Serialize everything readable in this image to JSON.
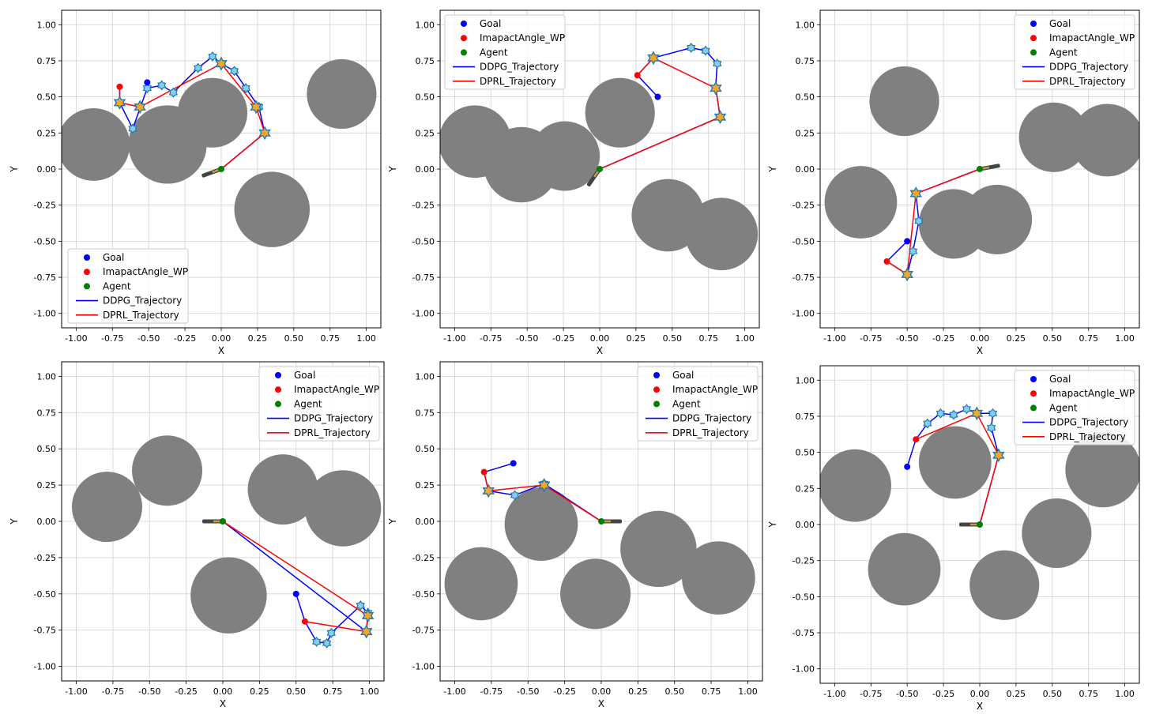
{
  "figure": {
    "rows": 2,
    "cols": 3
  },
  "colors": {
    "goal": "#0000ff",
    "waypoint": "#ff0000",
    "agent": "#008000",
    "ddpg": "#0000ff",
    "dprl": "#ff0000",
    "obstacle": "#808080",
    "grid": "#d0d0d0",
    "marker_star_fill": "#f5a623",
    "marker_star_edge": "#1f77b4",
    "marker_hex_fill": "#87ceeb"
  },
  "chart_data": [
    {
      "type": "scatter",
      "title": "",
      "xlabel": "X",
      "ylabel": "Y",
      "xlim": [
        -1.1,
        1.1
      ],
      "ylim": [
        -1.1,
        1.1
      ],
      "xticks": [
        "-1.00",
        "-0.75",
        "-0.50",
        "-0.25",
        "0.00",
        "0.25",
        "0.50",
        "0.75",
        "1.00"
      ],
      "yticks": [
        "-1.00",
        "-0.75",
        "-0.50",
        "-0.25",
        "0.00",
        "0.25",
        "0.50",
        "0.75",
        "1.00"
      ],
      "grid": true,
      "legend_loc": "lower-left",
      "legend": [
        "Goal",
        "ImapactAngle_WP",
        "Agent",
        "DDPG_Trajectory",
        "DPRL_Trajectory"
      ],
      "obstacles": [
        {
          "x": -0.88,
          "y": 0.17,
          "r": 0.25
        },
        {
          "x": -0.37,
          "y": 0.17,
          "r": 0.27
        },
        {
          "x": -0.06,
          "y": 0.39,
          "r": 0.24
        },
        {
          "x": 0.35,
          "y": -0.28,
          "r": 0.26
        },
        {
          "x": 0.83,
          "y": 0.52,
          "r": 0.24
        }
      ],
      "goal": {
        "x": -0.51,
        "y": 0.6
      },
      "waypoint": {
        "x": -0.7,
        "y": 0.57
      },
      "agent": {
        "x": 0.0,
        "y": 0.0,
        "heading_deg": 200
      },
      "ddpg": [
        [
          0.0,
          0.0
        ],
        [
          0.3,
          0.25
        ],
        [
          0.26,
          0.43
        ],
        [
          0.17,
          0.56
        ],
        [
          0.09,
          0.68
        ],
        [
          0.0,
          0.73
        ],
        [
          -0.06,
          0.78
        ],
        [
          -0.16,
          0.7
        ],
        [
          -0.33,
          0.53
        ],
        [
          -0.41,
          0.58
        ],
        [
          -0.51,
          0.56
        ],
        [
          -0.61,
          0.28
        ],
        [
          -0.7,
          0.46
        ],
        [
          -0.7,
          0.57
        ]
      ],
      "dprl": [
        [
          0.0,
          0.0
        ],
        [
          0.3,
          0.25
        ],
        [
          0.24,
          0.43
        ],
        [
          0.0,
          0.73
        ],
        [
          -0.56,
          0.43
        ],
        [
          -0.7,
          0.46
        ],
        [
          -0.7,
          0.57
        ]
      ],
      "hex_markers": [
        [
          0.3,
          0.25
        ],
        [
          0.26,
          0.43
        ],
        [
          0.17,
          0.56
        ],
        [
          0.09,
          0.68
        ],
        [
          -0.06,
          0.78
        ],
        [
          -0.16,
          0.7
        ],
        [
          -0.33,
          0.53
        ],
        [
          -0.41,
          0.58
        ],
        [
          -0.51,
          0.56
        ],
        [
          -0.61,
          0.28
        ]
      ],
      "star_markers": [
        [
          0.3,
          0.25
        ],
        [
          0.24,
          0.43
        ],
        [
          0.0,
          0.73
        ],
        [
          -0.56,
          0.43
        ],
        [
          -0.7,
          0.46
        ]
      ]
    },
    {
      "type": "scatter",
      "title": "",
      "xlabel": "X",
      "ylabel": "Y",
      "xlim": [
        -1.1,
        1.1
      ],
      "ylim": [
        -1.1,
        1.1
      ],
      "xticks": [
        "-1.00",
        "-0.75",
        "-0.50",
        "-0.25",
        "0.00",
        "0.25",
        "0.50",
        "0.75",
        "1.00"
      ],
      "yticks": [
        "-1.00",
        "-0.75",
        "-0.50",
        "-0.25",
        "0.00",
        "0.25",
        "0.50",
        "0.75",
        "1.00"
      ],
      "grid": true,
      "legend_loc": "top-left",
      "legend": [
        "Goal",
        "ImapactAngle_WP",
        "Agent",
        "DDPG_Trajectory",
        "DPRL_Trajectory"
      ],
      "obstacles": [
        {
          "x": -0.86,
          "y": 0.19,
          "r": 0.25
        },
        {
          "x": -0.54,
          "y": 0.03,
          "r": 0.26
        },
        {
          "x": -0.24,
          "y": 0.09,
          "r": 0.24
        },
        {
          "x": 0.14,
          "y": 0.39,
          "r": 0.24
        },
        {
          "x": 0.47,
          "y": -0.32,
          "r": 0.25
        },
        {
          "x": 0.84,
          "y": -0.45,
          "r": 0.25
        }
      ],
      "goal": {
        "x": 0.4,
        "y": 0.5
      },
      "waypoint": {
        "x": 0.26,
        "y": 0.65
      },
      "agent": {
        "x": 0.0,
        "y": 0.0,
        "heading_deg": 235
      },
      "ddpg": [
        [
          0.0,
          0.0
        ],
        [
          0.83,
          0.36
        ],
        [
          0.8,
          0.56
        ],
        [
          0.8,
          0.58
        ],
        [
          0.81,
          0.73
        ],
        [
          0.73,
          0.82
        ],
        [
          0.63,
          0.84
        ],
        [
          0.37,
          0.77
        ],
        [
          0.26,
          0.65
        ],
        [
          0.4,
          0.5
        ]
      ],
      "dprl": [
        [
          0.0,
          0.0
        ],
        [
          0.83,
          0.36
        ],
        [
          0.8,
          0.56
        ],
        [
          0.37,
          0.77
        ],
        [
          0.26,
          0.65
        ]
      ],
      "hex_markers": [
        [
          0.8,
          0.56
        ],
        [
          0.81,
          0.73
        ],
        [
          0.73,
          0.82
        ],
        [
          0.63,
          0.84
        ],
        [
          0.37,
          0.77
        ]
      ],
      "star_markers": [
        [
          0.83,
          0.36
        ],
        [
          0.8,
          0.56
        ],
        [
          0.37,
          0.77
        ]
      ]
    },
    {
      "type": "scatter",
      "title": "",
      "xlabel": "X",
      "ylabel": "Y",
      "xlim": [
        -1.1,
        1.1
      ],
      "ylim": [
        -1.1,
        1.1
      ],
      "xticks": [
        "-1.00",
        "-0.75",
        "-0.50",
        "-0.25",
        "0.00",
        "0.25",
        "0.50",
        "0.75",
        "1.00"
      ],
      "yticks": [
        "-1.00",
        "-0.75",
        "-0.50",
        "-0.25",
        "0.00",
        "0.25",
        "0.50",
        "0.75",
        "1.00"
      ],
      "grid": true,
      "legend_loc": "top-right",
      "legend": [
        "Goal",
        "ImapactAngle_WP",
        "Agent",
        "DDPG_Trajectory",
        "DPRL_Trajectory"
      ],
      "obstacles": [
        {
          "x": -0.52,
          "y": 0.47,
          "r": 0.24
        },
        {
          "x": -0.82,
          "y": -0.23,
          "r": 0.25
        },
        {
          "x": -0.18,
          "y": -0.38,
          "r": 0.24
        },
        {
          "x": 0.12,
          "y": -0.35,
          "r": 0.24
        },
        {
          "x": 0.51,
          "y": 0.22,
          "r": 0.24
        },
        {
          "x": 0.88,
          "y": 0.2,
          "r": 0.25
        }
      ],
      "goal": {
        "x": -0.5,
        "y": -0.5
      },
      "waypoint": {
        "x": -0.64,
        "y": -0.64
      },
      "agent": {
        "x": 0.0,
        "y": 0.0,
        "heading_deg": 10
      },
      "ddpg": [
        [
          0.0,
          0.0
        ],
        [
          -0.44,
          -0.17
        ],
        [
          -0.42,
          -0.36
        ],
        [
          -0.46,
          -0.57
        ],
        [
          -0.5,
          -0.73
        ],
        [
          -0.64,
          -0.64
        ],
        [
          -0.5,
          -0.5
        ]
      ],
      "dprl": [
        [
          0.0,
          0.0
        ],
        [
          -0.44,
          -0.17
        ],
        [
          -0.5,
          -0.73
        ],
        [
          -0.64,
          -0.64
        ]
      ],
      "hex_markers": [
        [
          -0.44,
          -0.17
        ],
        [
          -0.42,
          -0.36
        ],
        [
          -0.46,
          -0.57
        ],
        [
          -0.5,
          -0.73
        ]
      ],
      "star_markers": [
        [
          -0.44,
          -0.17
        ],
        [
          -0.5,
          -0.73
        ]
      ]
    },
    {
      "type": "scatter",
      "title": "",
      "xlabel": "X",
      "ylabel": "Y",
      "xlim": [
        -1.1,
        1.1
      ],
      "ylim": [
        -1.1,
        1.1
      ],
      "xticks": [
        "-1.00",
        "-0.75",
        "-0.50",
        "-0.25",
        "0.00",
        "0.25",
        "0.50",
        "0.75",
        "1.00"
      ],
      "yticks": [
        "-1.00",
        "-0.75",
        "-0.50",
        "-0.25",
        "0.00",
        "0.25",
        "0.50",
        "0.75",
        "1.00"
      ],
      "grid": true,
      "legend_loc": "top-right",
      "legend": [
        "Goal",
        "ImapactAngle_WP",
        "Agent",
        "DDPG_Trajectory",
        "DPRL_Trajectory"
      ],
      "obstacles": [
        {
          "x": -0.79,
          "y": 0.1,
          "r": 0.24
        },
        {
          "x": -0.38,
          "y": 0.35,
          "r": 0.24
        },
        {
          "x": 0.41,
          "y": 0.22,
          "r": 0.24
        },
        {
          "x": 0.82,
          "y": 0.09,
          "r": 0.26
        },
        {
          "x": 0.04,
          "y": -0.51,
          "r": 0.26
        }
      ],
      "goal": {
        "x": 0.5,
        "y": -0.5
      },
      "waypoint": {
        "x": 0.56,
        "y": -0.69
      },
      "agent": {
        "x": 0.0,
        "y": 0.0,
        "heading_deg": 180
      },
      "ddpg": [
        [
          0.0,
          0.0
        ],
        [
          0.98,
          -0.76
        ],
        [
          0.99,
          -0.63
        ],
        [
          0.94,
          -0.58
        ],
        [
          0.74,
          -0.77
        ],
        [
          0.71,
          -0.84
        ],
        [
          0.64,
          -0.83
        ],
        [
          0.56,
          -0.69
        ],
        [
          0.5,
          -0.5
        ]
      ],
      "dprl": [
        [
          0.0,
          0.0
        ],
        [
          0.99,
          -0.65
        ],
        [
          0.98,
          -0.76
        ],
        [
          0.56,
          -0.69
        ]
      ],
      "hex_markers": [
        [
          0.98,
          -0.76
        ],
        [
          0.99,
          -0.63
        ],
        [
          0.94,
          -0.58
        ],
        [
          0.74,
          -0.77
        ],
        [
          0.71,
          -0.84
        ],
        [
          0.64,
          -0.83
        ]
      ],
      "star_markers": [
        [
          0.99,
          -0.65
        ],
        [
          0.98,
          -0.76
        ]
      ]
    },
    {
      "type": "scatter",
      "title": "",
      "xlabel": "X",
      "ylabel": "Y",
      "xlim": [
        -1.1,
        1.1
      ],
      "ylim": [
        -1.1,
        1.1
      ],
      "xticks": [
        "-1.00",
        "-0.75",
        "-0.50",
        "-0.25",
        "0.00",
        "0.25",
        "0.50",
        "0.75",
        "1.00"
      ],
      "yticks": [
        "-1.00",
        "-0.75",
        "-0.50",
        "-0.25",
        "0.00",
        "0.25",
        "0.50",
        "0.75",
        "1.00"
      ],
      "grid": true,
      "legend_loc": "top-right",
      "legend": [
        "Goal",
        "ImapactAngle_WP",
        "Agent",
        "DDPG_Trajectory",
        "DPRL_Trajectory"
      ],
      "obstacles": [
        {
          "x": -0.82,
          "y": -0.43,
          "r": 0.25
        },
        {
          "x": -0.41,
          "y": -0.02,
          "r": 0.25
        },
        {
          "x": -0.04,
          "y": -0.5,
          "r": 0.24
        },
        {
          "x": 0.39,
          "y": -0.19,
          "r": 0.26
        },
        {
          "x": 0.8,
          "y": -0.39,
          "r": 0.25
        }
      ],
      "goal": {
        "x": -0.6,
        "y": 0.4
      },
      "waypoint": {
        "x": -0.8,
        "y": 0.34
      },
      "agent": {
        "x": 0.0,
        "y": 0.0,
        "heading_deg": 0
      },
      "ddpg": [
        [
          0.0,
          0.0
        ],
        [
          -0.39,
          0.26
        ],
        [
          -0.59,
          0.18
        ],
        [
          -0.77,
          0.21
        ],
        [
          -0.8,
          0.34
        ],
        [
          -0.6,
          0.4
        ]
      ],
      "dprl": [
        [
          0.0,
          0.0
        ],
        [
          -0.39,
          0.25
        ],
        [
          -0.77,
          0.21
        ],
        [
          -0.8,
          0.34
        ]
      ],
      "hex_markers": [
        [
          -0.39,
          0.26
        ],
        [
          -0.59,
          0.18
        ],
        [
          -0.77,
          0.21
        ]
      ],
      "star_markers": [
        [
          -0.39,
          0.25
        ],
        [
          -0.77,
          0.21
        ]
      ]
    },
    {
      "type": "scatter",
      "title": "",
      "xlabel": "X",
      "ylabel": "Y",
      "xlim": [
        -1.1,
        1.1
      ],
      "ylim": [
        -1.1,
        1.1
      ],
      "xticks": [
        "-1.00",
        "-0.75",
        "-0.50",
        "-0.25",
        "0.00",
        "0.25",
        "0.50",
        "0.75",
        "1.00"
      ],
      "yticks": [
        "-1.00",
        "-0.75",
        "-0.50",
        "-0.25",
        "0.00",
        "0.25",
        "0.50",
        "0.75",
        "1.00"
      ],
      "grid": true,
      "legend_loc": "top-right",
      "legend": [
        "Goal",
        "ImapactAngle_WP",
        "Agent",
        "DDPG_Trajectory",
        "DPRL_Trajectory"
      ],
      "obstacles": [
        {
          "x": -0.86,
          "y": 0.27,
          "r": 0.25
        },
        {
          "x": -0.17,
          "y": 0.43,
          "r": 0.25
        },
        {
          "x": 0.85,
          "y": 0.38,
          "r": 0.26
        },
        {
          "x": 0.53,
          "y": -0.06,
          "r": 0.24
        },
        {
          "x": -0.52,
          "y": -0.31,
          "r": 0.25
        },
        {
          "x": 0.17,
          "y": -0.42,
          "r": 0.24
        }
      ],
      "goal": {
        "x": -0.5,
        "y": 0.4
      },
      "waypoint": {
        "x": -0.44,
        "y": 0.59
      },
      "agent": {
        "x": 0.0,
        "y": 0.0,
        "heading_deg": 180
      },
      "ddpg": [
        [
          0.0,
          0.0
        ],
        [
          0.13,
          0.48
        ],
        [
          0.08,
          0.67
        ],
        [
          0.09,
          0.77
        ],
        [
          -0.02,
          0.77
        ],
        [
          -0.09,
          0.8
        ],
        [
          -0.18,
          0.76
        ],
        [
          -0.27,
          0.77
        ],
        [
          -0.36,
          0.7
        ],
        [
          -0.44,
          0.59
        ],
        [
          -0.5,
          0.4
        ]
      ],
      "dprl": [
        [
          0.0,
          0.0
        ],
        [
          0.13,
          0.48
        ],
        [
          -0.02,
          0.77
        ],
        [
          -0.44,
          0.59
        ]
      ],
      "hex_markers": [
        [
          0.13,
          0.48
        ],
        [
          0.08,
          0.67
        ],
        [
          0.09,
          0.77
        ],
        [
          -0.02,
          0.77
        ],
        [
          -0.09,
          0.8
        ],
        [
          -0.18,
          0.76
        ],
        [
          -0.27,
          0.77
        ],
        [
          -0.36,
          0.7
        ]
      ],
      "star_markers": [
        [
          0.13,
          0.48
        ],
        [
          -0.02,
          0.77
        ]
      ]
    }
  ]
}
